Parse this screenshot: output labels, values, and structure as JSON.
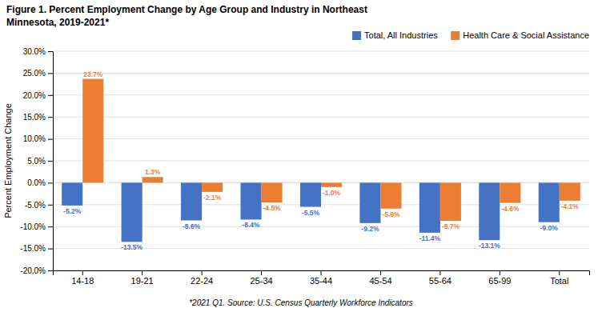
{
  "chart_data": {
    "type": "bar",
    "title": "Figure 1. Percent Employment Change by Age Group and Industry in Northeast",
    "subtitle": "Minnesota, 2019-2021*",
    "ylabel": "Percent Employment Change",
    "categories": [
      "14-18",
      "19-21",
      "22-24",
      "25-34",
      "35-44",
      "45-54",
      "55-64",
      "65-99",
      "Total"
    ],
    "series": [
      {
        "name": "Total, All Industries",
        "color": "#4472C4",
        "values": [
          -5.2,
          -13.5,
          -8.6,
          -8.4,
          -5.5,
          -9.2,
          -11.4,
          -13.1,
          -9.0
        ],
        "value_labels": [
          "-5.2%",
          "-13.5%",
          "-8.6%",
          "-8.4%",
          "-5.5%",
          "-9.2%",
          "-11.4%",
          "-13.1%",
          "-9.0%"
        ]
      },
      {
        "name": "Health Care & Social Assistance",
        "color": "#ED7D31",
        "values": [
          23.7,
          1.3,
          -2.1,
          -4.5,
          -1.0,
          -5.9,
          -8.7,
          -4.6,
          -4.1
        ],
        "value_labels": [
          "23.7%",
          "1.3%",
          "-2.1%",
          "-4.5%",
          "-1.0%",
          "-5.9%",
          "-8.7%",
          "-4.6%",
          "-4.1%"
        ]
      }
    ],
    "ylim": [
      -20.0,
      30.0
    ],
    "yticks": [
      {
        "value": -20.0,
        "label": "-20.0%"
      },
      {
        "value": -15.0,
        "label": "-15.0%"
      },
      {
        "value": -10.0,
        "label": "-10.0%"
      },
      {
        "value": -5.0,
        "label": "-5.0%"
      },
      {
        "value": 0.0,
        "label": "0.0%"
      },
      {
        "value": 5.0,
        "label": "5.0%"
      },
      {
        "value": 10.0,
        "label": "10.0%"
      },
      {
        "value": 15.0,
        "label": "15.0%"
      },
      {
        "value": 20.0,
        "label": "20.0%"
      },
      {
        "value": 25.0,
        "label": "25.0%"
      },
      {
        "value": 30.0,
        "label": "30.0%"
      }
    ],
    "grid": true,
    "legend": "top-right",
    "data_labels": true,
    "annotations": [
      "*2021 Q1. Source: U.S. Census Quarterly Workforce Indicators"
    ]
  }
}
